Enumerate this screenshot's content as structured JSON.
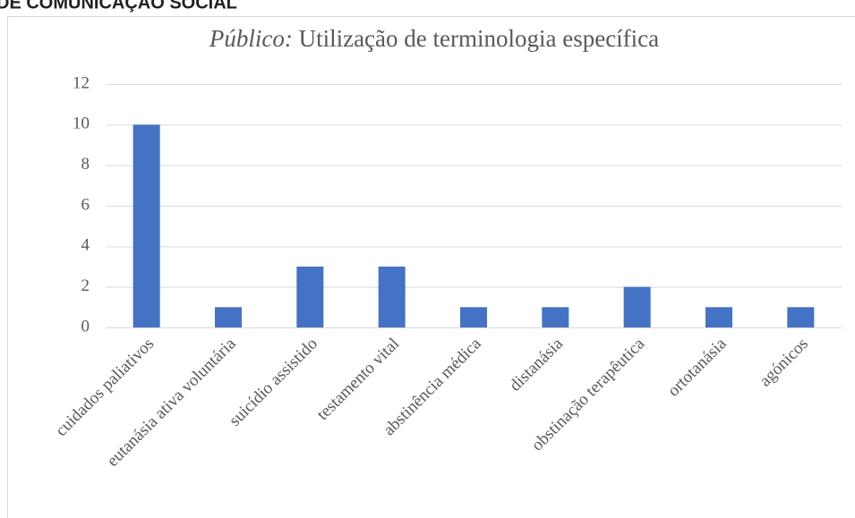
{
  "header_text": "DE COMUNICAÇÃO SOCIAL",
  "chart_data": {
    "type": "bar",
    "title_italic": "Público:",
    "title": "Utilização de terminologia específica",
    "categories": [
      "cuidados paliativos",
      "eutanásia ativa voluntária",
      "suicídio assistido",
      "testamento vital",
      "abstinência médica",
      "distanásia",
      "obstinação terapêutica",
      "ortotanásia",
      "agónicos"
    ],
    "values": [
      10,
      1,
      3,
      3,
      1,
      1,
      2,
      1,
      1
    ],
    "color": "#4472c4",
    "ylim": [
      0,
      12
    ],
    "yticks": [
      0,
      2,
      4,
      6,
      8,
      10,
      12
    ],
    "grid": true
  }
}
